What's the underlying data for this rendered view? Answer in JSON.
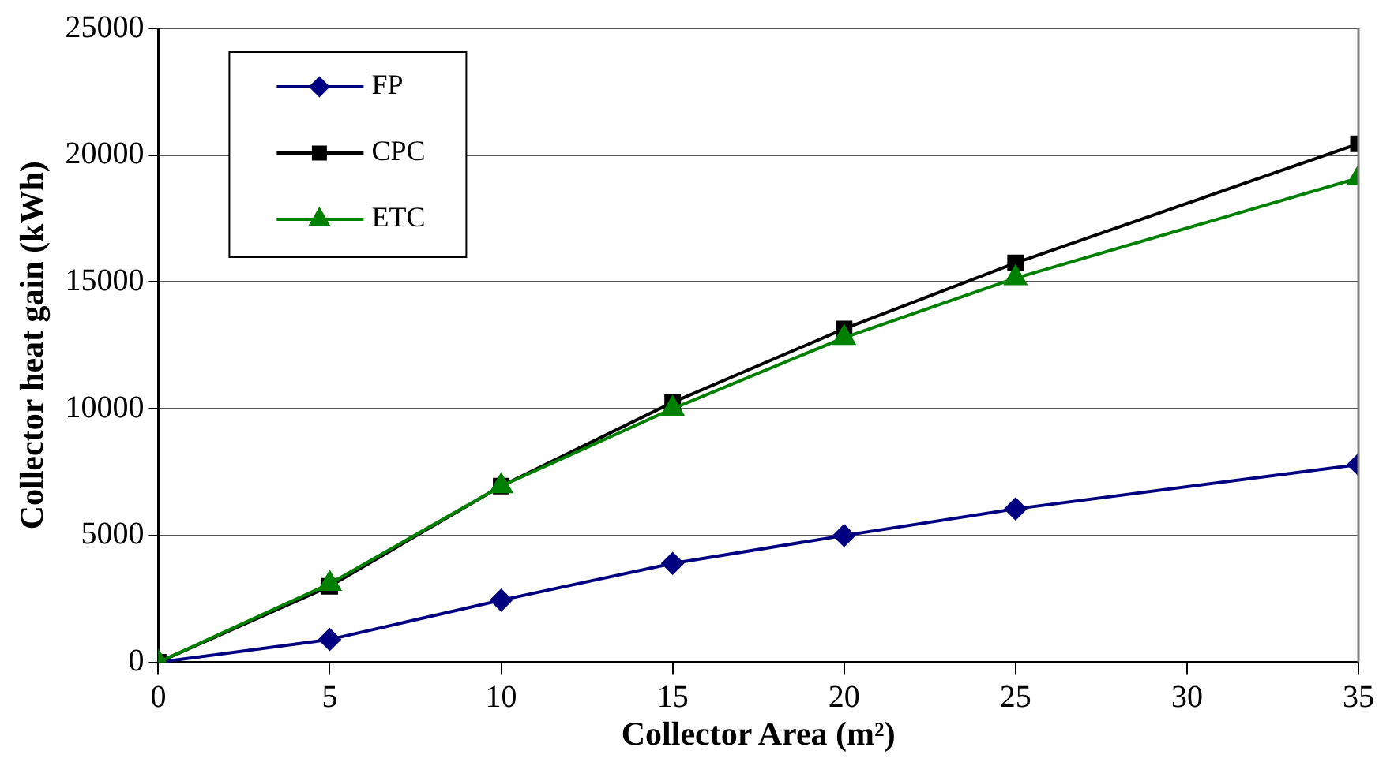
{
  "chart_data": {
    "type": "line",
    "xlabel": "Collector Area (m²)",
    "ylabel": "Collector heat gain (kWh)",
    "x": [
      0,
      5,
      10,
      15,
      20,
      25,
      35
    ],
    "series": [
      {
        "name": "FP",
        "color": "#000080",
        "marker": "diamond",
        "values": [
          0,
          900,
          2450,
          3900,
          5000,
          6050,
          7800
        ]
      },
      {
        "name": "CPC",
        "color": "#000000",
        "marker": "square",
        "values": [
          0,
          3000,
          6950,
          10250,
          13150,
          15750,
          20450
        ]
      },
      {
        "name": "ETC",
        "color": "#008000",
        "marker": "triangle",
        "values": [
          0,
          3100,
          6950,
          10000,
          12800,
          15150,
          19100
        ]
      }
    ],
    "xlim": [
      0,
      35
    ],
    "xticks": [
      0,
      5,
      10,
      15,
      20,
      25,
      30,
      35
    ],
    "ylim": [
      0,
      25000
    ],
    "yticks": [
      0,
      5000,
      10000,
      15000,
      20000,
      25000
    ],
    "grid": "y",
    "legend": "top left",
    "line_style": "solid"
  }
}
